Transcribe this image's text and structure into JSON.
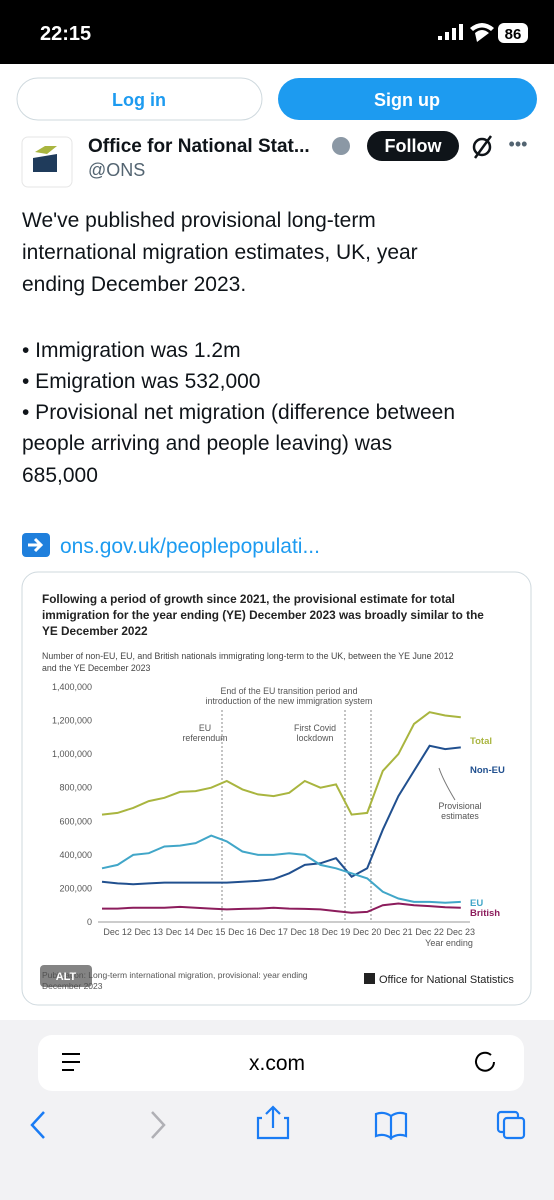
{
  "status_bar": {
    "time": "22:15",
    "battery": "86"
  },
  "auth": {
    "log_in": "Log in",
    "sign_up": "Sign up"
  },
  "post": {
    "account_name": "Office for National Stat...",
    "handle": "@ONS",
    "follow": "Follow",
    "body_lines": [
      "We've published provisional long-term",
      "international migration estimates, UK, year",
      "ending December 2023.",
      "• Immigration was 1.2m",
      "• Emigration was 532,000",
      "• Provisional net migration (difference between",
      "people arriving and people leaving) was",
      "685,000"
    ],
    "link": "ons.gov.uk/peoplepopulati..."
  },
  "chart_data": {
    "type": "line",
    "title_lines": [
      "Following a period of growth since 2021, the provisional estimate for total",
      "immigration for the year ending (YE) December 2023 was broadly similar to the",
      "YE December 2022"
    ],
    "subtitle_lines": [
      "Number of non-EU, EU, and British nationals immigrating long-term to the UK, between the YE June 2012",
      "and the YE December 2023"
    ],
    "annotations": {
      "transition": [
        "End of the EU transition period and",
        "introduction of the new immigration system"
      ],
      "referendum": [
        "EU",
        "referendum"
      ],
      "covid": [
        "First Covid",
        "lockdown"
      ],
      "provisional": [
        "Provisional",
        "estimates"
      ]
    },
    "x_label": "Year ending",
    "categories": [
      null,
      "Dec 12",
      null,
      "Dec 13",
      null,
      "Dec 14",
      null,
      "Dec 15",
      null,
      "Dec 16",
      null,
      "Dec 17",
      null,
      "Dec 18",
      null,
      "Dec 19",
      null,
      "Dec 20",
      null,
      "Dec 21",
      null,
      "Dec 22",
      null,
      "Dec 23"
    ],
    "series": [
      {
        "name": "Total",
        "color": "#a9b53f",
        "values": [
          640000,
          650000,
          680000,
          720000,
          740000,
          775000,
          780000,
          800000,
          840000,
          790000,
          760000,
          750000,
          770000,
          840000,
          800000,
          820000,
          640000,
          650000,
          900000,
          1000000,
          1180000,
          1250000,
          1230000,
          1220000
        ]
      },
      {
        "name": "Non-EU",
        "color": "#21508f",
        "values": [
          240000,
          230000,
          225000,
          230000,
          235000,
          235000,
          235000,
          235000,
          235000,
          240000,
          245000,
          255000,
          290000,
          340000,
          350000,
          380000,
          270000,
          320000,
          550000,
          750000,
          900000,
          1050000,
          1030000,
          1040000
        ]
      },
      {
        "name": "EU",
        "color": "#41a6c8",
        "values": [
          320000,
          340000,
          400000,
          410000,
          450000,
          455000,
          470000,
          515000,
          480000,
          420000,
          400000,
          400000,
          410000,
          400000,
          340000,
          320000,
          290000,
          260000,
          180000,
          140000,
          120000,
          120000,
          115000,
          120000
        ]
      },
      {
        "name": "British",
        "color": "#8c1c5c",
        "values": [
          80000,
          80000,
          85000,
          85000,
          85000,
          90000,
          85000,
          80000,
          75000,
          78000,
          80000,
          85000,
          80000,
          78000,
          75000,
          65000,
          55000,
          60000,
          100000,
          110000,
          100000,
          95000,
          88000,
          85000
        ]
      }
    ],
    "ylim": [
      0,
      1400000
    ],
    "yticks": [
      0,
      {
        "value": 200000,
        "label": "200,000"
      },
      {
        "value": 400000,
        "label": "400,000"
      },
      {
        "value": 600000,
        "label": "600,000"
      },
      {
        "value": 800000,
        "label": "800,000"
      },
      {
        "value": 1000000,
        "label": "1,000,000"
      },
      {
        "value": 1200000,
        "label": "1,200,000"
      },
      {
        "value": 1400000,
        "label": "1,400,000"
      }
    ],
    "grid": false,
    "footnote_lines": [
      "Publication: Long-term international migration, provisional: year ending",
      "December 2023"
    ],
    "alt_badge": "ALT",
    "source": "Office for National Statistics"
  },
  "browser": {
    "url": "x.com"
  }
}
